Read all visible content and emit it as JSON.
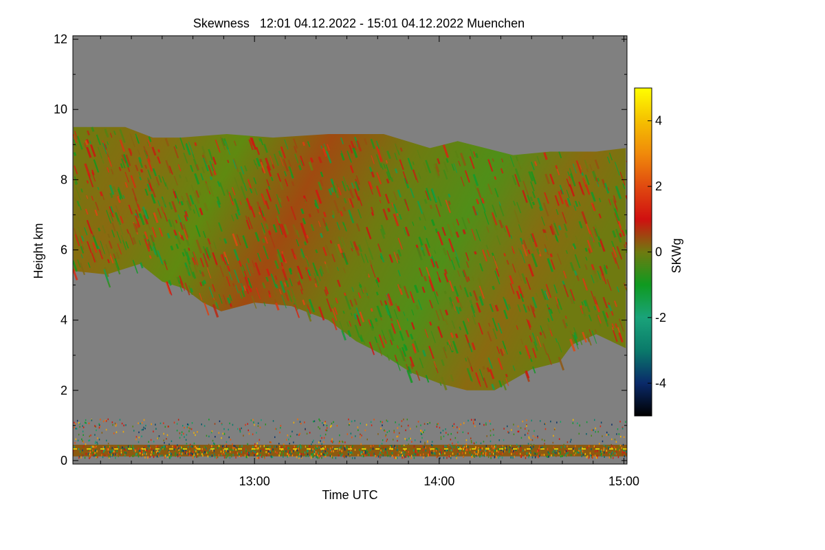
{
  "chart_data": {
    "type": "heatmap",
    "title": "Skewness   12:01 04.12.2022 - 15:01 04.12.2022 Muenchen",
    "xlabel": "Time UTC",
    "ylabel": "Height km",
    "xlim": [
      12.0167,
      15.0167
    ],
    "ylim": [
      -0.1,
      12.1
    ],
    "x_ticks": [
      {
        "value": 13.0,
        "label": "13:00"
      },
      {
        "value": 14.0,
        "label": "14:00"
      },
      {
        "value": 15.0,
        "label": "15:00"
      }
    ],
    "y_ticks": [
      {
        "value": 0,
        "label": "0"
      },
      {
        "value": 2,
        "label": "2"
      },
      {
        "value": 4,
        "label": "4"
      },
      {
        "value": 6,
        "label": "6"
      },
      {
        "value": 8,
        "label": "8"
      },
      {
        "value": 10,
        "label": "10"
      },
      {
        "value": 12,
        "label": "12"
      }
    ],
    "colorbar": {
      "label": "SKWg",
      "range": [
        -5,
        5
      ],
      "ticks": [
        {
          "value": 4,
          "label": "4"
        },
        {
          "value": 2,
          "label": "2"
        },
        {
          "value": 0,
          "label": "0"
        },
        {
          "value": -2,
          "label": "-2"
        },
        {
          "value": -4,
          "label": "-4"
        }
      ],
      "stops": [
        {
          "value": -5,
          "color": "#000000"
        },
        {
          "value": -4,
          "color": "#0a2a6a"
        },
        {
          "value": -3,
          "color": "#0a7a6a"
        },
        {
          "value": -2,
          "color": "#1aa37a"
        },
        {
          "value": -1,
          "color": "#0f9a20"
        },
        {
          "value": 0,
          "color": "#6f7a10"
        },
        {
          "value": 1,
          "color": "#d01010"
        },
        {
          "value": 2,
          "color": "#e04a10"
        },
        {
          "value": 3,
          "color": "#f08a0a"
        },
        {
          "value": 4,
          "color": "#f5c000"
        },
        {
          "value": 5,
          "color": "#ffff00"
        }
      ]
    },
    "no_data_color": "#808080",
    "cloud_layer": {
      "description_value": "skewness field",
      "top_height_km": [
        {
          "t": 12.02,
          "h": 9.5
        },
        {
          "t": 12.3,
          "h": 9.5
        },
        {
          "t": 12.45,
          "h": 9.2
        },
        {
          "t": 12.6,
          "h": 9.2
        },
        {
          "t": 12.85,
          "h": 9.3
        },
        {
          "t": 13.1,
          "h": 9.2
        },
        {
          "t": 13.4,
          "h": 9.3
        },
        {
          "t": 13.7,
          "h": 9.3
        },
        {
          "t": 13.95,
          "h": 8.9
        },
        {
          "t": 14.1,
          "h": 9.1
        },
        {
          "t": 14.4,
          "h": 8.7
        },
        {
          "t": 14.6,
          "h": 8.8
        },
        {
          "t": 14.85,
          "h": 8.8
        },
        {
          "t": 15.01,
          "h": 8.9
        }
      ],
      "base_height_km": [
        {
          "t": 12.02,
          "h": 5.4
        },
        {
          "t": 12.2,
          "h": 5.3
        },
        {
          "t": 12.38,
          "h": 5.6
        },
        {
          "t": 12.5,
          "h": 5.1
        },
        {
          "t": 12.62,
          "h": 4.9
        },
        {
          "t": 12.72,
          "h": 4.5
        },
        {
          "t": 12.82,
          "h": 4.25
        },
        {
          "t": 13.0,
          "h": 4.5
        },
        {
          "t": 13.2,
          "h": 4.4
        },
        {
          "t": 13.4,
          "h": 4.0
        },
        {
          "t": 13.55,
          "h": 3.4
        },
        {
          "t": 13.7,
          "h": 3.0
        },
        {
          "t": 13.85,
          "h": 2.5
        },
        {
          "t": 14.0,
          "h": 2.2
        },
        {
          "t": 14.15,
          "h": 2.0
        },
        {
          "t": 14.3,
          "h": 2.0
        },
        {
          "t": 14.5,
          "h": 2.6
        },
        {
          "t": 14.65,
          "h": 2.8
        },
        {
          "t": 14.72,
          "h": 3.3
        },
        {
          "t": 14.85,
          "h": 3.6
        },
        {
          "t": 15.01,
          "h": 3.2
        }
      ]
    },
    "boundary_layer": {
      "description_value": "noisy low-level returns",
      "top_height_km": 1.2,
      "base_height_km": 0.1
    }
  }
}
